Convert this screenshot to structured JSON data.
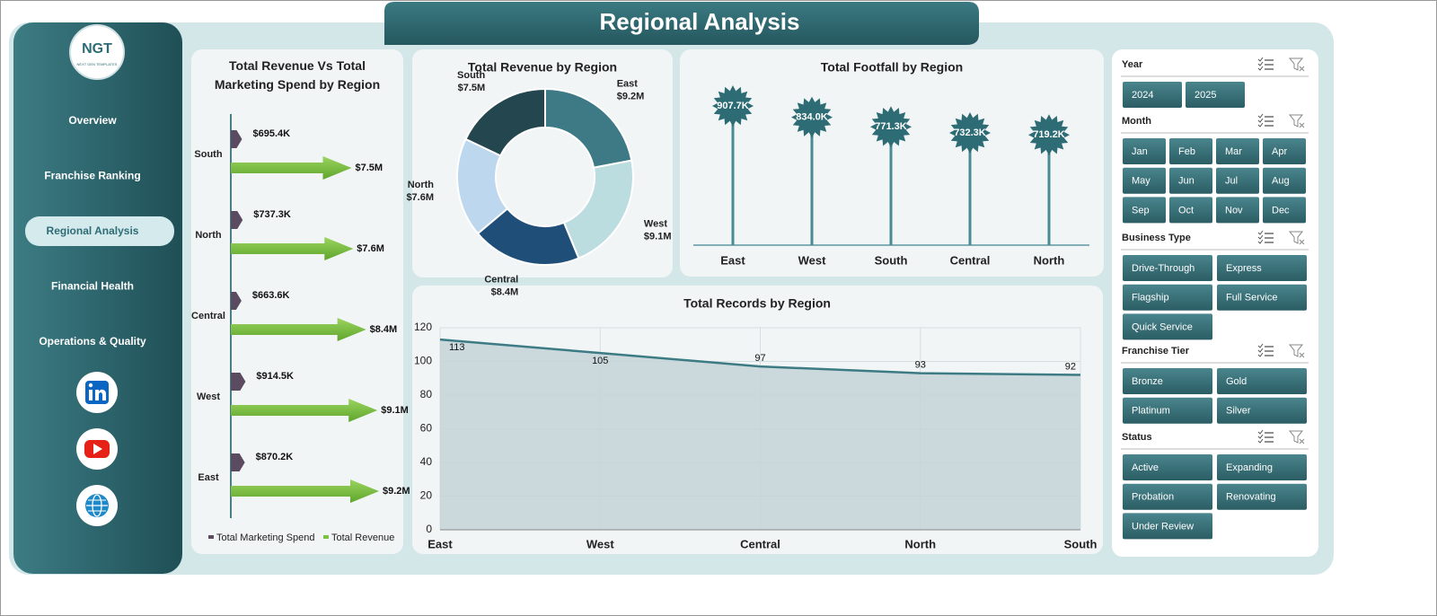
{
  "header": {
    "title": "Regional Analysis"
  },
  "logo": {
    "text": "NGT",
    "tagline": "NEXT GEN TEMPLATES"
  },
  "nav": {
    "items": [
      {
        "label": "Overview"
      },
      {
        "label": "Franchise Ranking"
      },
      {
        "label": "Regional Analysis",
        "selected": true
      },
      {
        "label": "Financial Health"
      },
      {
        "label": "Operations & Quality"
      }
    ]
  },
  "chart_data": [
    {
      "type": "hbar",
      "title": "Total Revenue Vs Total Marketing Spend by Region",
      "categories": [
        "South",
        "North",
        "Central",
        "West",
        "East"
      ],
      "series": [
        {
          "name": "Total Marketing Spend",
          "color": "#5b4b60",
          "values": [
            695400,
            737300,
            663600,
            914500,
            870200
          ],
          "value_labels": [
            "$695.4K",
            "$737.3K",
            "$663.6K",
            "$914.5K",
            "$870.2K"
          ]
        },
        {
          "name": "Total Revenue",
          "color": "#7cc242",
          "values": [
            7500000,
            7600000,
            8400000,
            9100000,
            9200000
          ],
          "value_labels": [
            "$7.5M",
            "$7.6M",
            "$8.4M",
            "$9.1M",
            "$9.2M"
          ]
        }
      ],
      "legend": "bottom"
    },
    {
      "type": "donut",
      "title": "Total Revenue  by Region",
      "categories": [
        "East",
        "West",
        "Central",
        "North",
        "South"
      ],
      "values": [
        9200000,
        9100000,
        8400000,
        7600000,
        7500000
      ],
      "value_labels": [
        "$9.2M",
        "$9.1M",
        "$8.4M",
        "$7.6M",
        "$7.5M"
      ],
      "colors": [
        "#3d7a85",
        "#bcdde0",
        "#1f4e79",
        "#bdd7ee",
        "#24474f"
      ]
    },
    {
      "type": "lollipop",
      "title": "Total Footfall by Region",
      "categories": [
        "East",
        "West",
        "South",
        "Central",
        "North"
      ],
      "values": [
        907700,
        834000,
        771300,
        732300,
        719200
      ],
      "value_labels": [
        "907.7K",
        "834.0K",
        "771.3K",
        "732.3K",
        "719.2K"
      ],
      "color": "#2e6c75"
    },
    {
      "type": "area",
      "title": "Total Records by Region",
      "categories": [
        "East",
        "West",
        "Central",
        "North",
        "South"
      ],
      "values": [
        113,
        105,
        97,
        93,
        92
      ],
      "ylim": [
        0,
        120
      ],
      "yticks": [
        0,
        20,
        40,
        60,
        80,
        100,
        120
      ],
      "grid": true,
      "color": "#3d7b84"
    }
  ],
  "slicers": [
    {
      "title": "Year",
      "items": [
        "2024",
        "2025"
      ]
    },
    {
      "title": "Month",
      "items": [
        "Jan",
        "Feb",
        "Mar",
        "Apr",
        "May",
        "Jun",
        "Jul",
        "Aug",
        "Sep",
        "Oct",
        "Nov",
        "Dec"
      ]
    },
    {
      "title": "Business Type",
      "items": [
        "Drive-Through",
        "Express",
        "Flagship",
        "Full Service",
        "Quick Service"
      ]
    },
    {
      "title": "Franchise Tier",
      "items": [
        "Bronze",
        "Gold",
        "Platinum",
        "Silver"
      ]
    },
    {
      "title": "Status",
      "items": [
        "Active",
        "Expanding",
        "Probation",
        "Renovating",
        "Under Review"
      ]
    }
  ]
}
